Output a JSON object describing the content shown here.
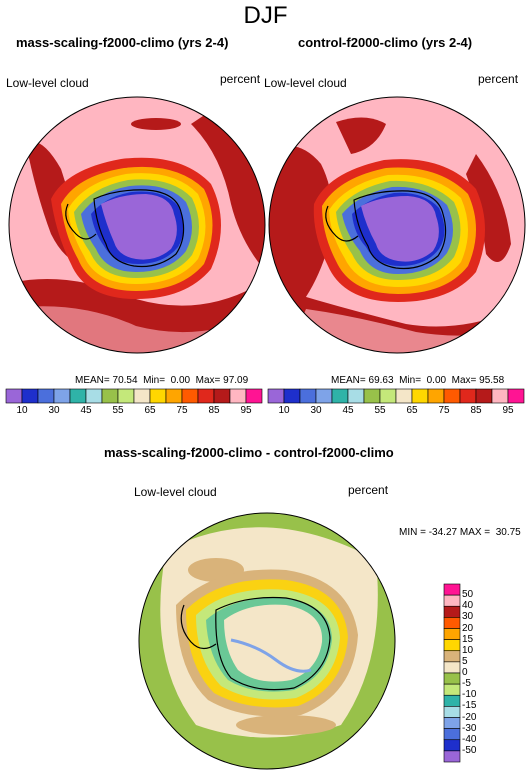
{
  "season": "DJF",
  "panels": [
    {
      "title": "mass-scaling-f2000-climo (yrs 2-4)",
      "variable": "Low-level cloud",
      "units": "percent",
      "stats": "MEAN= 70.54  Min=  0.00  Max= 97.09"
    },
    {
      "title": "control-f2000-climo (yrs 2-4)",
      "variable": "Low-level cloud",
      "units": "percent",
      "stats": "MEAN= 69.63  Min=  0.00  Max= 95.58"
    }
  ],
  "colorbar_top": {
    "ticks": [
      "10",
      "30",
      "45",
      "55",
      "65",
      "75",
      "85",
      "95"
    ],
    "colors": [
      "#9a66d8",
      "#1e2fcc",
      "#4b6fdc",
      "#7ea3e8",
      "#2fb3a8",
      "#a8dde6",
      "#98c14a",
      "#c4e87a",
      "#f4e6c8",
      "#ffd700",
      "#ffa500",
      "#ff5a00",
      "#e0281c",
      "#b51a1a",
      "#ffb6c1",
      "#ff1493"
    ]
  },
  "diff": {
    "title": "mass-scaling-f2000-climo - control-f2000-climo",
    "variable": "Low-level cloud",
    "units": "percent",
    "stats": "MIN = -34.27 MAX =  30.75",
    "colorbar": {
      "ticks": [
        "50",
        "40",
        "30",
        "20",
        "15",
        "10",
        "5",
        "0",
        "-5",
        "-10",
        "-15",
        "-20",
        "-30",
        "-40",
        "-50"
      ],
      "colors": [
        "#ff1493",
        "#ffb6c1",
        "#b51a1a",
        "#ff5a00",
        "#ffa500",
        "#ffd700",
        "#d9b37a",
        "#f4e6c8",
        "#98c14a",
        "#c4e87a",
        "#2fb3a8",
        "#a8dde6",
        "#7ea3e8",
        "#4b6fdc",
        "#1e2fcc",
        "#9a66d8"
      ]
    }
  }
}
